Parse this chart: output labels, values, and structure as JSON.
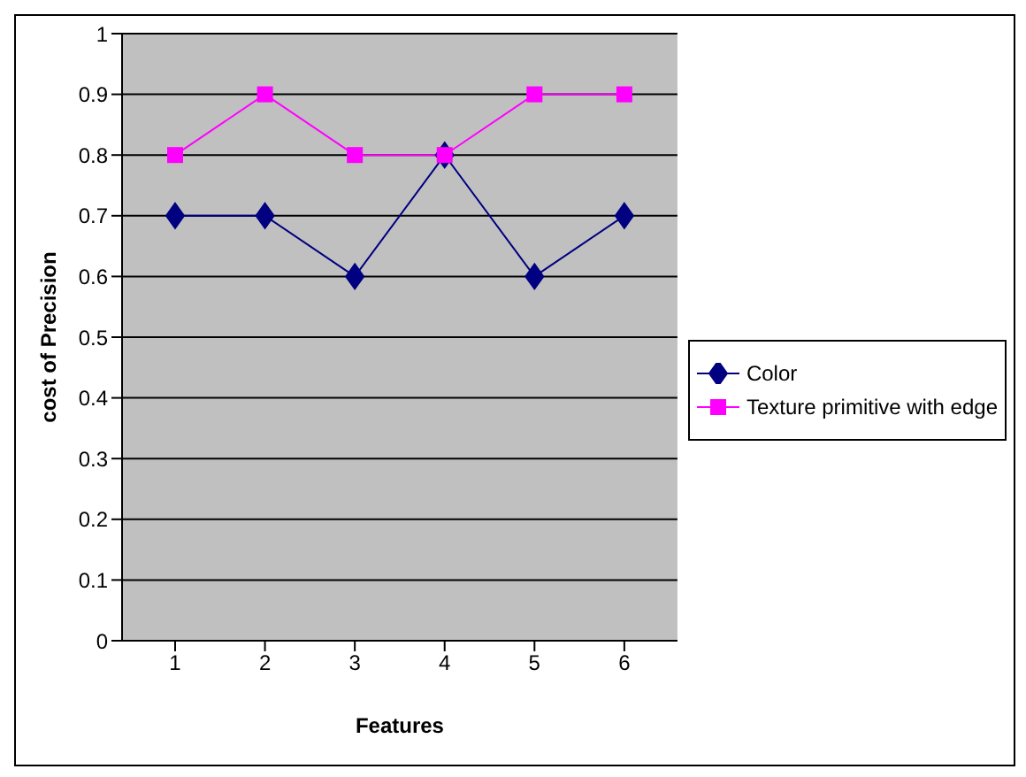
{
  "chart_data": {
    "type": "line",
    "xlabel": "Features",
    "ylabel": "cost of Precision",
    "categories": [
      "1",
      "2",
      "3",
      "4",
      "5",
      "6"
    ],
    "series": [
      {
        "name": "Color",
        "color": "#000080",
        "marker": "diamond",
        "values": [
          0.7,
          0.7,
          0.6,
          0.8,
          0.6,
          0.7
        ]
      },
      {
        "name": "Texture primitive with edge",
        "color": "#ff00ff",
        "marker": "square",
        "values": [
          0.8,
          0.9,
          0.8,
          0.8,
          0.9,
          0.9
        ]
      }
    ],
    "ylim": [
      0,
      1
    ],
    "yticks": [
      0,
      0.1,
      0.2,
      0.3,
      0.4,
      0.5,
      0.6,
      0.7,
      0.8,
      0.9,
      1
    ],
    "grid": "y",
    "legend": "right"
  }
}
